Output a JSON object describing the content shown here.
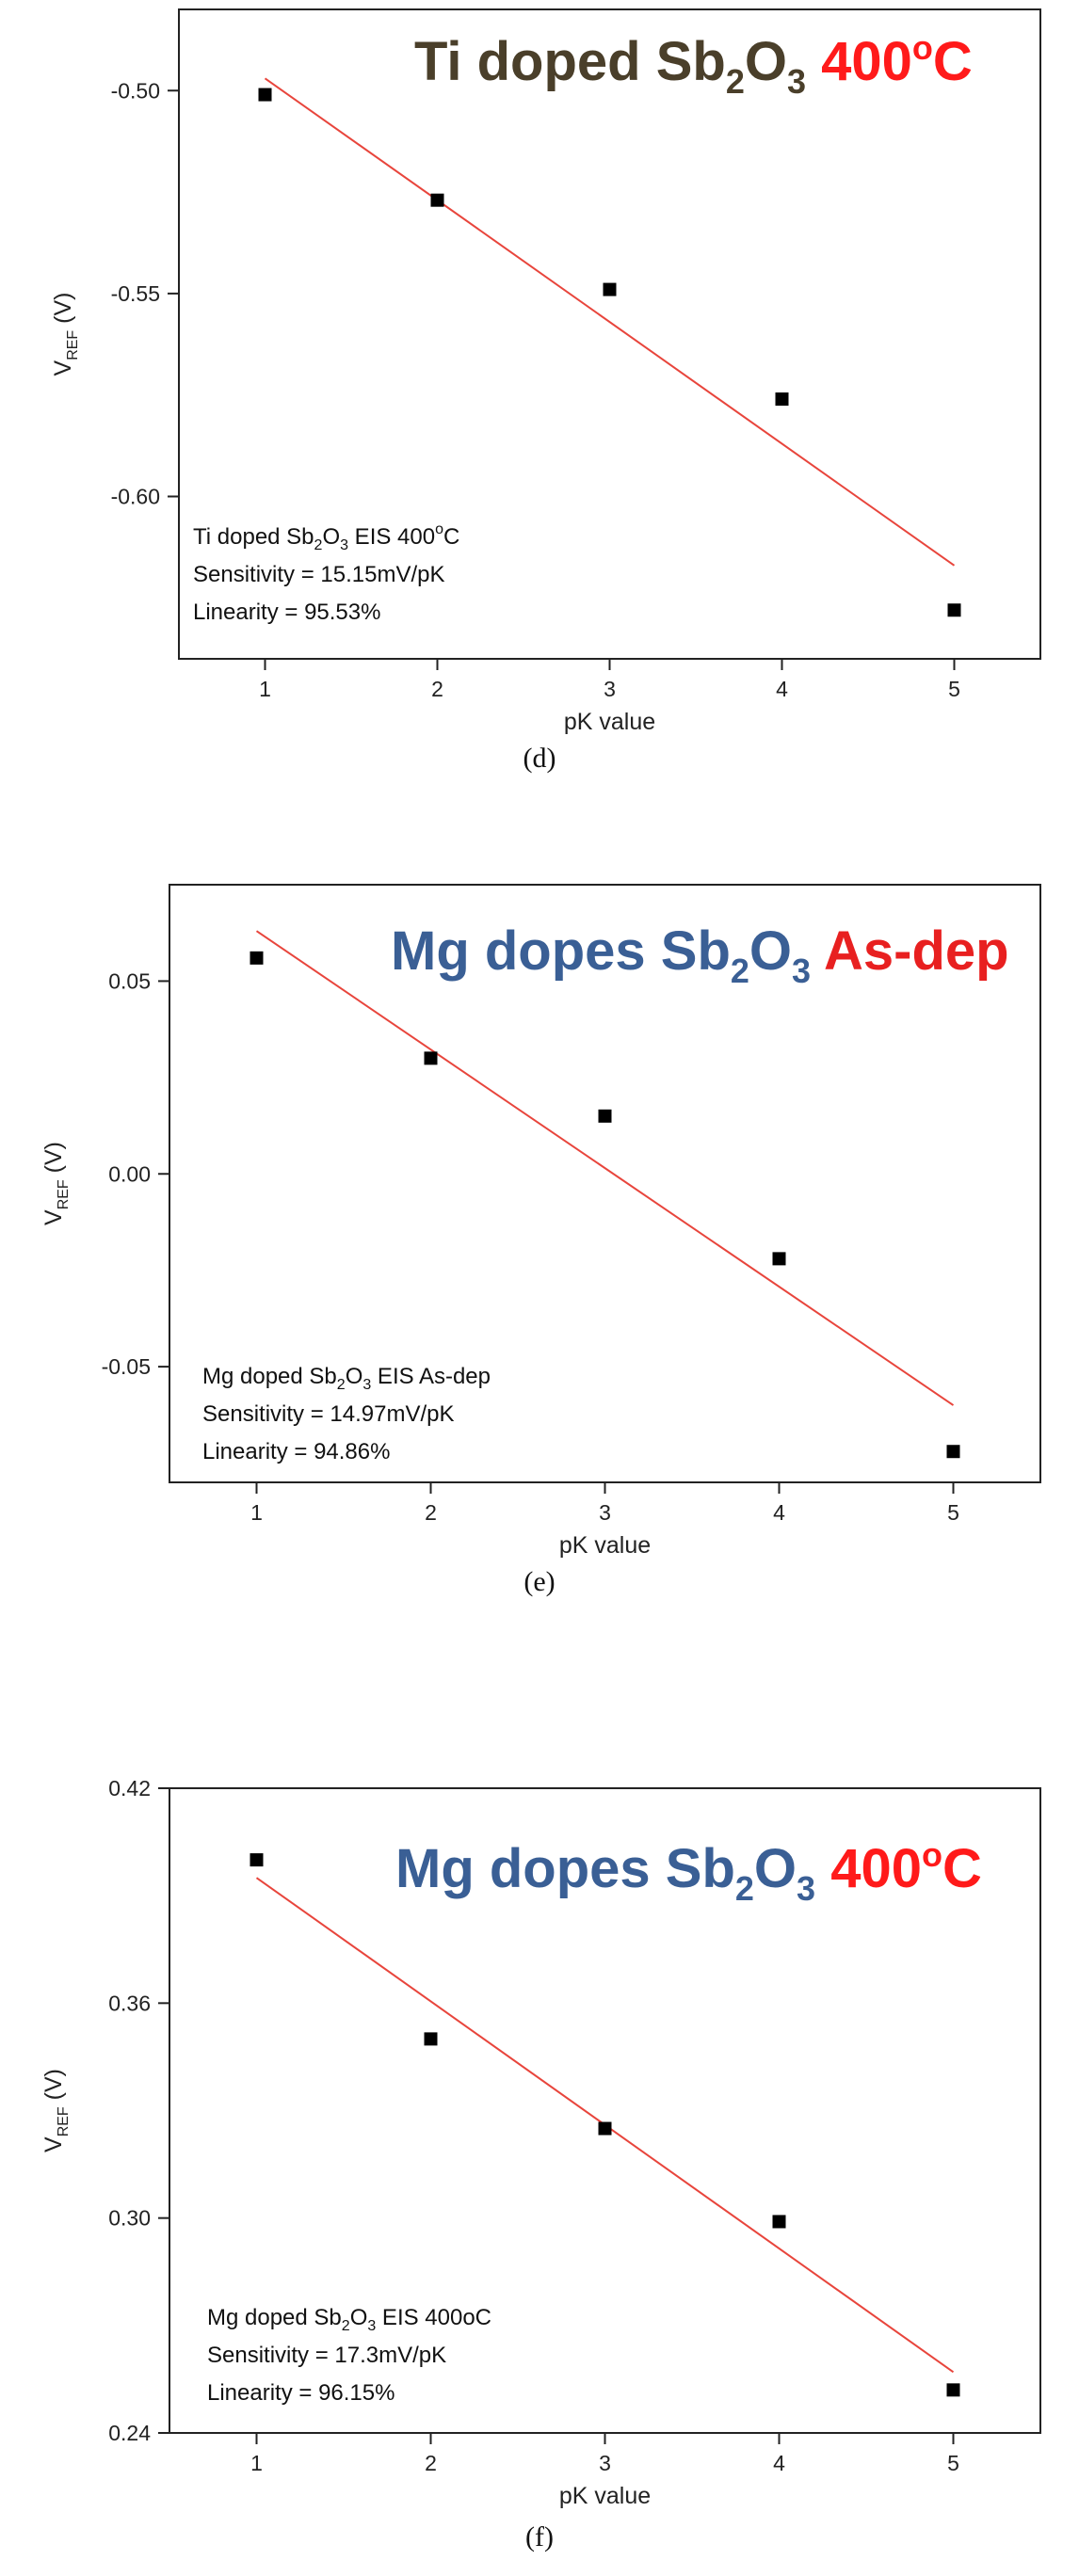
{
  "chart_data": [
    {
      "type": "scatter",
      "panel_label": "(d)",
      "title_parts": [
        {
          "text": "Ti doped Sb",
          "role": "main",
          "color": "#4a3f2a"
        },
        {
          "text": "2",
          "role": "sub",
          "color": "#4a3f2a"
        },
        {
          "text": "O",
          "role": "main",
          "color": "#4a3f2a"
        },
        {
          "text": "3",
          "role": "sub",
          "color": "#4a3f2a"
        },
        {
          "text": "  400",
          "role": "main",
          "color": "#ff1a1a"
        },
        {
          "text": "o",
          "role": "sup",
          "color": "#ff1a1a"
        },
        {
          "text": "C",
          "role": "main",
          "color": "#ff1a1a"
        }
      ],
      "ylabel_main": "V",
      "ylabel_sub": "REF",
      "ylabel_unit": " (V)",
      "xlabel": "pK value",
      "xlim": [
        0.5,
        5.5
      ],
      "ylim": [
        -0.64,
        -0.48
      ],
      "xticks": [
        1,
        2,
        3,
        4,
        5
      ],
      "yticks": [
        -0.5,
        -0.55,
        -0.6
      ],
      "ytick_labels": [
        "-0.50",
        "-0.55",
        "-0.60"
      ],
      "x": [
        1,
        2,
        3,
        4,
        5
      ],
      "y": [
        -0.501,
        -0.527,
        -0.549,
        -0.576,
        -0.628
      ],
      "fit_line": {
        "x": [
          1,
          5
        ],
        "y": [
          -0.497,
          -0.617
        ],
        "color": "#e8453c"
      },
      "annotation_lines": [
        [
          {
            "text": "Ti doped Sb",
            "role": "main"
          },
          {
            "text": "2",
            "role": "sub"
          },
          {
            "text": "O",
            "role": "main"
          },
          {
            "text": "3",
            "role": "sub"
          },
          {
            "text": " EIS 400",
            "role": "main"
          },
          {
            "text": "o",
            "role": "sup"
          },
          {
            "text": "C",
            "role": "main"
          }
        ],
        [
          {
            "text": "Sensitivity = 15.15mV/pK",
            "role": "main"
          }
        ],
        [
          {
            "text": "Linearity = 95.53%",
            "role": "main"
          }
        ]
      ]
    },
    {
      "type": "scatter",
      "panel_label": "(e)",
      "title_parts": [
        {
          "text": "Mg dopes Sb",
          "role": "main",
          "color": "#3a5f95"
        },
        {
          "text": "2",
          "role": "sub",
          "color": "#3a5f95"
        },
        {
          "text": "O",
          "role": "main",
          "color": "#3a5f95"
        },
        {
          "text": "3",
          "role": "sub",
          "color": "#3a5f95"
        },
        {
          "text": " As-dep",
          "role": "main",
          "color": "#e82020"
        }
      ],
      "ylabel_main": "V",
      "ylabel_sub": "REF",
      "ylabel_unit": " (V)",
      "xlabel": "pK value",
      "xlim": [
        0.5,
        5.5
      ],
      "ylim": [
        -0.08,
        0.075
      ],
      "xticks": [
        1,
        2,
        3,
        4,
        5
      ],
      "yticks": [
        0.05,
        0.0,
        -0.05
      ],
      "ytick_labels": [
        "0.05",
        "0.00",
        "-0.05"
      ],
      "x": [
        1,
        2,
        3,
        4,
        5
      ],
      "y": [
        0.056,
        0.03,
        0.015,
        -0.022,
        -0.072
      ],
      "fit_line": {
        "x": [
          1,
          5
        ],
        "y": [
          0.063,
          -0.06
        ],
        "color": "#e8453c"
      },
      "annotation_lines": [
        [
          {
            "text": "Mg doped Sb",
            "role": "main"
          },
          {
            "text": "2",
            "role": "sub"
          },
          {
            "text": "O",
            "role": "main"
          },
          {
            "text": "3",
            "role": "sub"
          },
          {
            "text": " EIS As-dep",
            "role": "main"
          }
        ],
        [
          {
            "text": "Sensitivity = 14.97mV/pK",
            "role": "main"
          }
        ],
        [
          {
            "text": "Linearity = 94.86%",
            "role": "main"
          }
        ]
      ]
    },
    {
      "type": "scatter",
      "panel_label": "(f)",
      "title_parts": [
        {
          "text": "Mg dopes Sb",
          "role": "main",
          "color": "#3a5f95"
        },
        {
          "text": "2",
          "role": "sub",
          "color": "#3a5f95"
        },
        {
          "text": "O",
          "role": "main",
          "color": "#3a5f95"
        },
        {
          "text": "3",
          "role": "sub",
          "color": "#3a5f95"
        },
        {
          "text": "  400",
          "role": "main",
          "color": "#ff1a1a"
        },
        {
          "text": "o",
          "role": "sup",
          "color": "#ff1a1a"
        },
        {
          "text": "C",
          "role": "main",
          "color": "#ff1a1a"
        }
      ],
      "ylabel_main": "V",
      "ylabel_sub": "REF",
      "ylabel_unit": " (V)",
      "xlabel": "pK value",
      "xlim": [
        0.5,
        5.5
      ],
      "ylim": [
        0.24,
        0.42
      ],
      "xticks": [
        1,
        2,
        3,
        4,
        5
      ],
      "yticks": [
        0.42,
        0.36,
        0.3,
        0.24
      ],
      "ytick_labels": [
        "0.42",
        "0.36",
        "0.30",
        "0.24"
      ],
      "x": [
        1,
        2,
        3,
        4,
        5
      ],
      "y": [
        0.4,
        0.35,
        0.325,
        0.299,
        0.252
      ],
      "fit_line": {
        "x": [
          1,
          5
        ],
        "y": [
          0.395,
          0.257
        ],
        "color": "#e8453c"
      },
      "annotation_lines": [
        [
          {
            "text": "Mg doped Sb",
            "role": "main"
          },
          {
            "text": "2",
            "role": "sub"
          },
          {
            "text": "O",
            "role": "main"
          },
          {
            "text": "3",
            "role": "sub"
          },
          {
            "text": " EIS 400oC",
            "role": "main"
          }
        ],
        [
          {
            "text": "Sensitivity = 17.3mV/pK",
            "role": "main"
          }
        ],
        [
          {
            "text": "Linearity = 96.15%",
            "role": "main"
          }
        ]
      ]
    }
  ]
}
